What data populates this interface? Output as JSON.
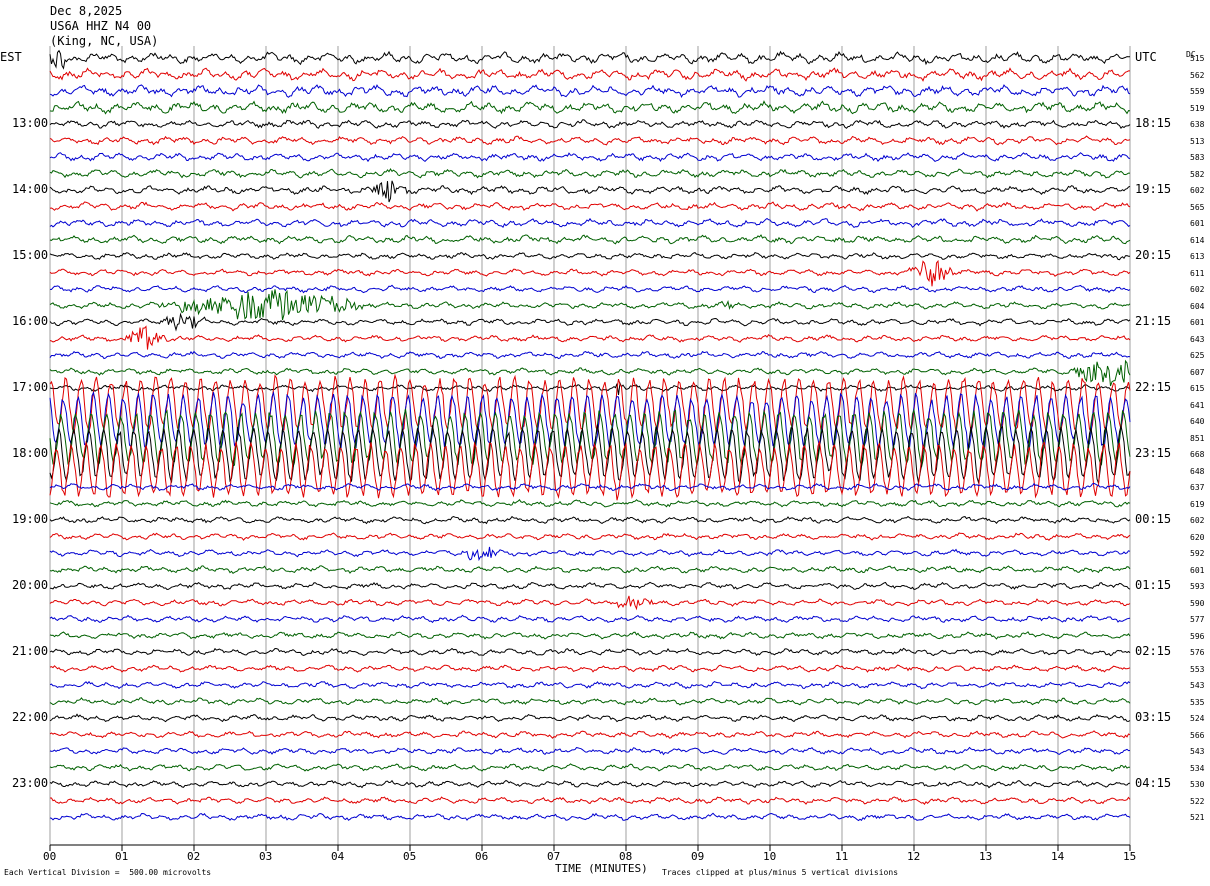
{
  "header": {
    "date": "Dec 8,2025",
    "station": "US6A HHZ N4 00",
    "location": "(King, NC, USA)"
  },
  "left_timezone": "EST",
  "right_timezone": "UTC",
  "dc_label": "DC",
  "footer": {
    "scale_text": "Each Vertical Division =  500.00 microvolts",
    "clip_text": "Traces clipped at plus/minus 5 vertical divisions"
  },
  "colors": [
    "#000000",
    "#e00000",
    "#0000d0",
    "#006000"
  ],
  "chart_data": {
    "type": "line",
    "subtype": "helicorder",
    "xlabel": "TIME (MINUTES)",
    "xlim": [
      0,
      15
    ],
    "x_ticks": [
      "00",
      "01",
      "02",
      "03",
      "04",
      "05",
      "06",
      "07",
      "08",
      "09",
      "10",
      "11",
      "12",
      "13",
      "14",
      "15"
    ],
    "left_hour_labels": [
      {
        "row": 4,
        "label": "13:00"
      },
      {
        "row": 8,
        "label": "14:00"
      },
      {
        "row": 12,
        "label": "15:00"
      },
      {
        "row": 16,
        "label": "16:00"
      },
      {
        "row": 20,
        "label": "17:00"
      },
      {
        "row": 24,
        "label": "18:00"
      },
      {
        "row": 28,
        "label": "19:00"
      },
      {
        "row": 32,
        "label": "20:00"
      },
      {
        "row": 36,
        "label": "21:00"
      },
      {
        "row": 40,
        "label": "22:00"
      },
      {
        "row": 44,
        "label": "23:00"
      }
    ],
    "right_hour_labels": [
      {
        "row": 0,
        "label": "UTC"
      },
      {
        "row": 4,
        "label": "18:15"
      },
      {
        "row": 8,
        "label": "19:15"
      },
      {
        "row": 12,
        "label": "20:15"
      },
      {
        "row": 16,
        "label": "21:15"
      },
      {
        "row": 20,
        "label": "22:15"
      },
      {
        "row": 24,
        "label": "23:15"
      },
      {
        "row": 28,
        "label": "00:15"
      },
      {
        "row": 32,
        "label": "01:15"
      },
      {
        "row": 36,
        "label": "02:15"
      },
      {
        "row": 40,
        "label": "03:15"
      },
      {
        "row": 44,
        "label": "04:15"
      }
    ],
    "dc_offsets": [
      "515",
      "562",
      "559",
      "519",
      "638",
      "513",
      "583",
      "582",
      "602",
      "565",
      "601",
      "614",
      "613",
      "611",
      "602",
      "604",
      "601",
      "643",
      "625",
      "607",
      "615",
      "641",
      "640",
      "851",
      "668",
      "648",
      "637",
      "619",
      "602",
      "620",
      "592",
      "601",
      "593",
      "590",
      "577",
      "596",
      "576",
      "553",
      "543",
      "535",
      "524",
      "566",
      "543",
      "534",
      "530",
      "522",
      "521"
    ],
    "events": [
      {
        "row": 0,
        "minute": 0.1,
        "amp": 2.2,
        "width": 0.15
      },
      {
        "row": 8,
        "minute": 4.7,
        "amp": 1.8,
        "width": 0.3
      },
      {
        "row": 13,
        "minute": 12.25,
        "amp": 2.2,
        "width": 0.35
      },
      {
        "row": 15,
        "minute": 3.0,
        "amp": 2.2,
        "width": 1.6
      },
      {
        "row": 15,
        "minute": 9.4,
        "amp": 1.2,
        "width": 0.1
      },
      {
        "row": 16,
        "minute": 1.8,
        "amp": 1.4,
        "width": 0.4
      },
      {
        "row": 17,
        "minute": 1.3,
        "amp": 1.8,
        "width": 0.35
      },
      {
        "row": 19,
        "minute": 14.7,
        "amp": 2.5,
        "width": 0.6
      },
      {
        "row": 20,
        "minute": 7.9,
        "amp": 1.0,
        "width": 0.1
      },
      {
        "row": 30,
        "minute": 6.0,
        "amp": 1.2,
        "width": 0.3
      },
      {
        "row": 33,
        "minute": 8.1,
        "amp": 1.0,
        "width": 0.4
      }
    ],
    "large_rows": [
      21,
      22,
      23,
      24,
      25
    ]
  }
}
